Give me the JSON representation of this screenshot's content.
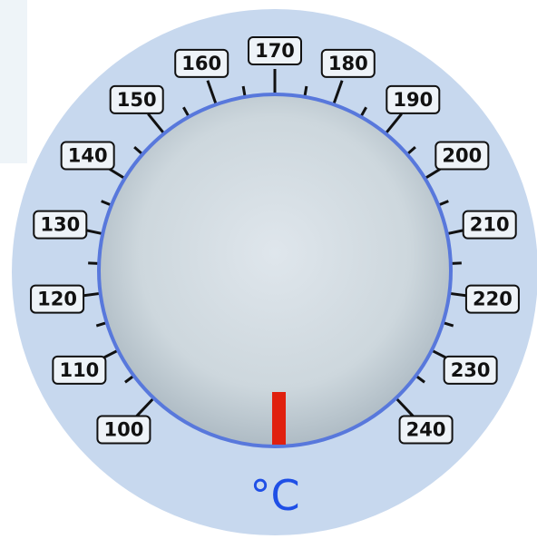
{
  "dial": {
    "labels": [
      100,
      110,
      120,
      130,
      140,
      150,
      160,
      170,
      180,
      190,
      200,
      210,
      220,
      230,
      240
    ],
    "unit": "°C"
  }
}
